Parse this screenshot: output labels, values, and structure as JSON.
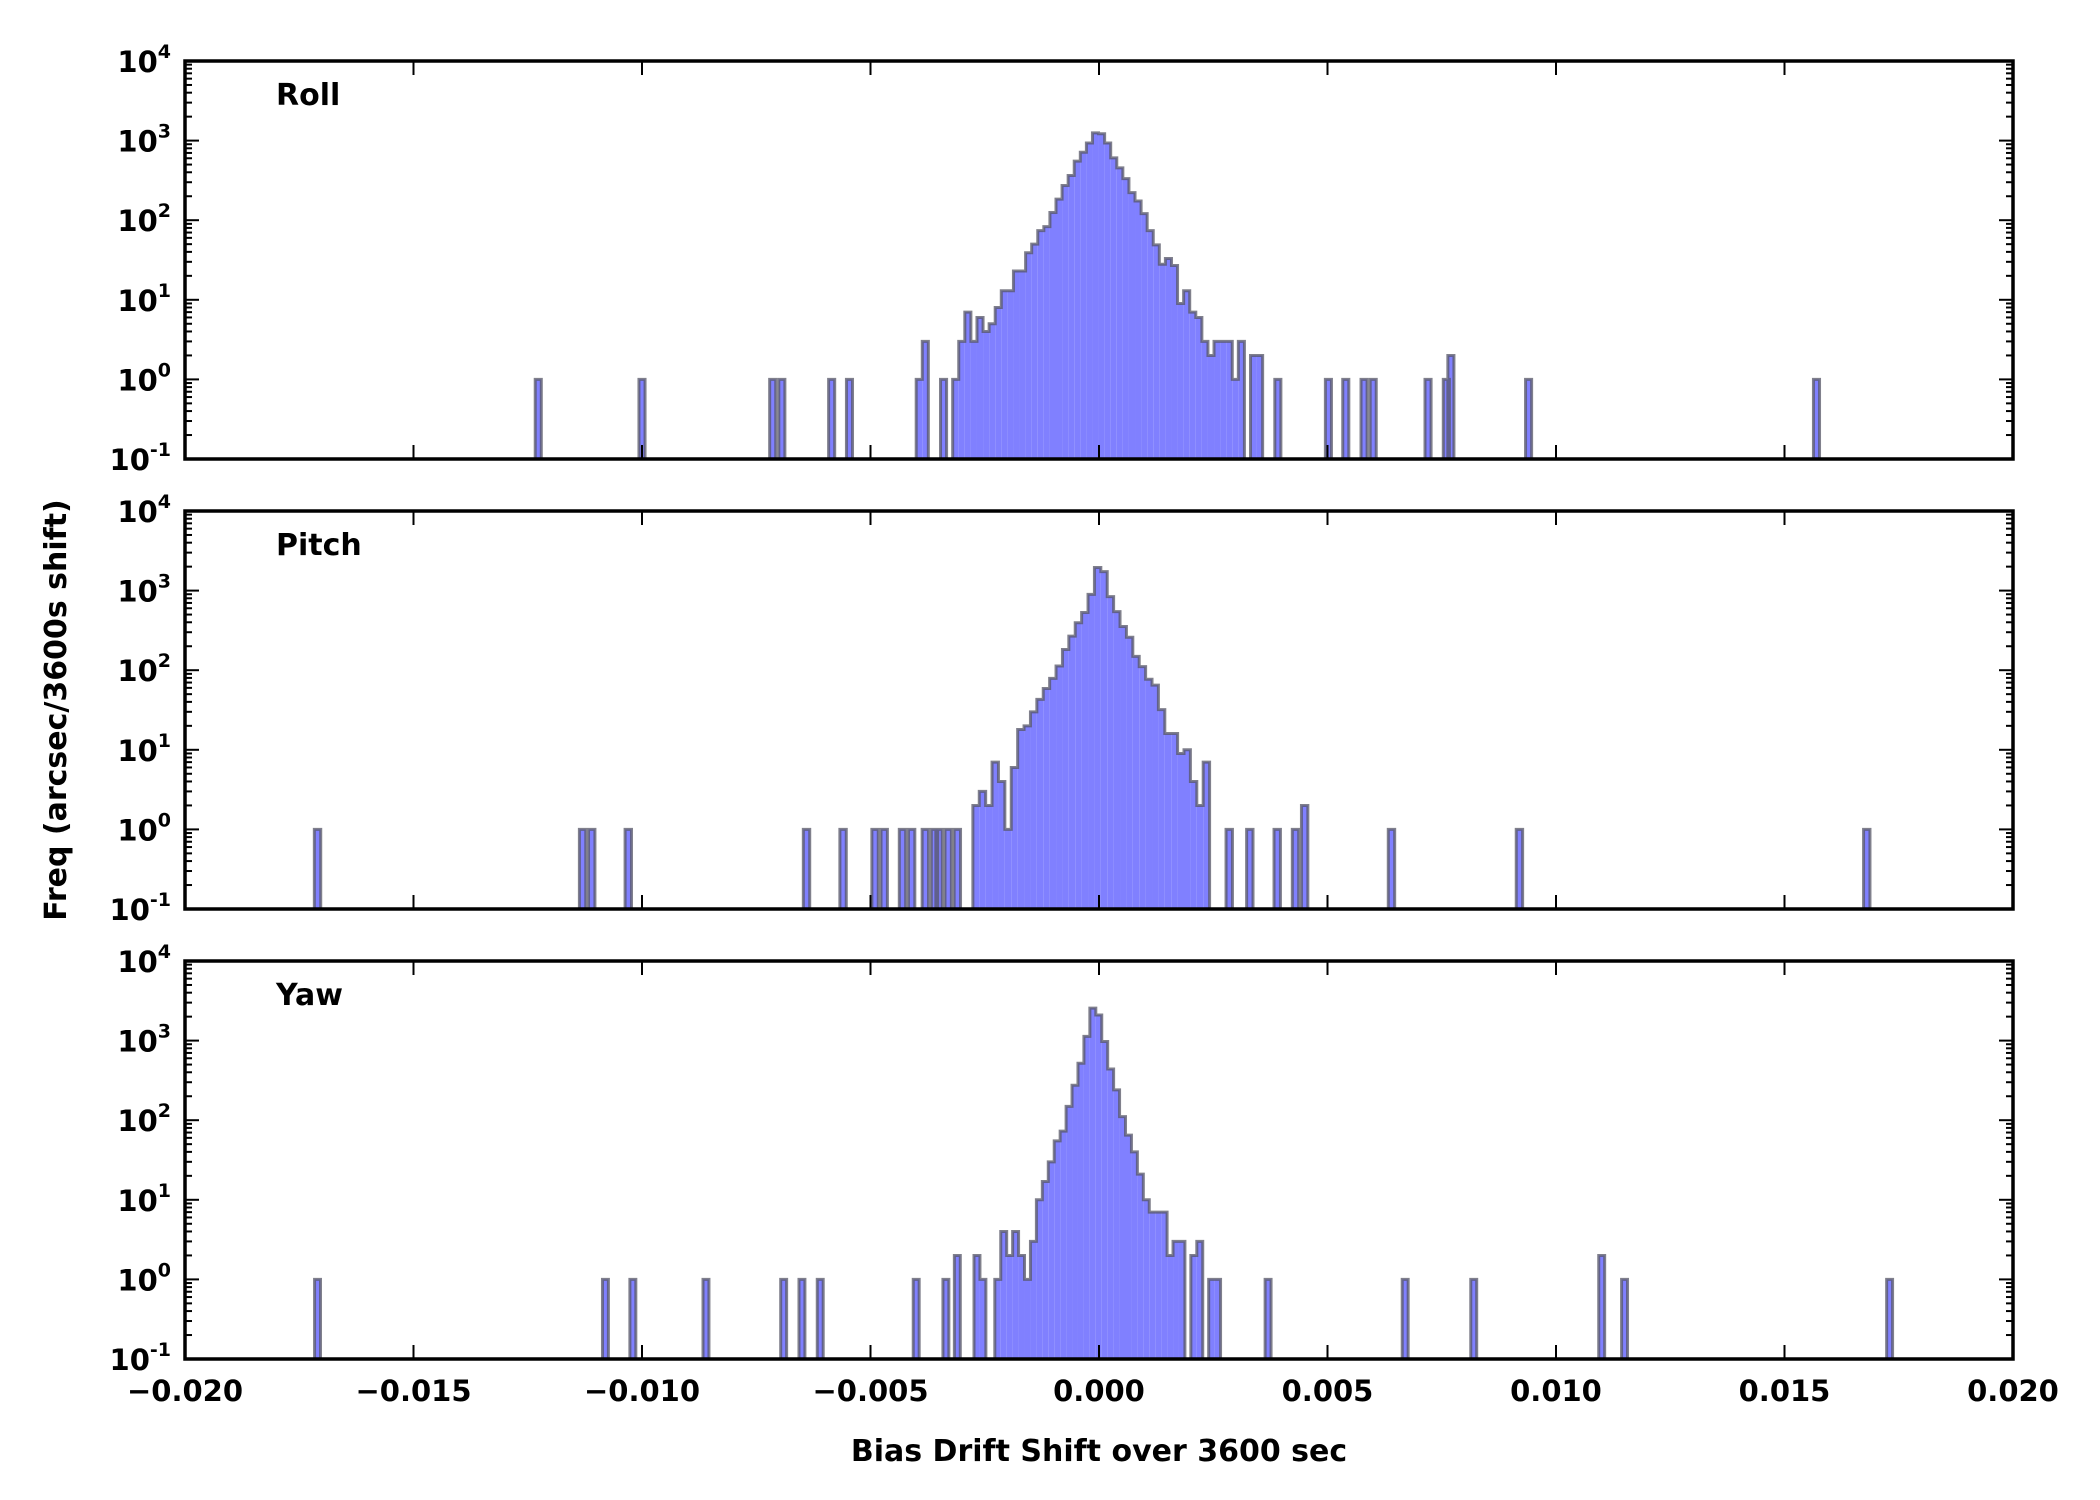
{
  "colors": {
    "fill": "#8080ff",
    "edge": "#555566",
    "axis": "#000000"
  },
  "chart_data": {
    "type": "bar",
    "subtype": "histogram-stepfilled",
    "xlabel": "Bias Drift Shift over 3600 sec",
    "ylabel": "Freq (arcsec/3600s shift)",
    "xlim": [
      -0.02,
      0.02
    ],
    "ylim": [
      0.1,
      10000
    ],
    "yscale": "log",
    "grid": false,
    "xticks": [
      -0.02,
      -0.015,
      -0.01,
      -0.005,
      0.0,
      0.005,
      0.01,
      0.015,
      0.02
    ],
    "xtick_labels": [
      "−0.020",
      "−0.015",
      "−0.010",
      "−0.005",
      "0.000",
      "0.005",
      "0.010",
      "0.015",
      "0.020"
    ],
    "yticks": [
      10000,
      1000,
      100,
      10,
      1,
      0.1
    ],
    "ytick_labels": [
      {
        "base": "10",
        "exp": "4"
      },
      {
        "base": "10",
        "exp": "3"
      },
      {
        "base": "10",
        "exp": "2"
      },
      {
        "base": "10",
        "exp": "1"
      },
      {
        "base": "10",
        "exp": "0"
      },
      {
        "base": "10",
        "exp": "-1"
      }
    ],
    "panels": [
      {
        "title": "Roll",
        "bin_width": 0.000133,
        "contiguous": {
          "start": -0.004,
          "counts": [
            1,
            3,
            0,
            0,
            1,
            0,
            1,
            3,
            7,
            3,
            6,
            4,
            5,
            8,
            13,
            13,
            23,
            23,
            39,
            50,
            74,
            83,
            125,
            184,
            273,
            365,
            552,
            714,
            934,
            1250,
            1220,
            934,
            607,
            455,
            333,
            222,
            174,
            121,
            74,
            49,
            28,
            33,
            27,
            9,
            13,
            7,
            6,
            3,
            2,
            3,
            3,
            3,
            1,
            3,
            0,
            2,
            2,
            0,
            0,
            1
          ]
        },
        "outliers": [
          [
            -0.01227,
            1
          ],
          [
            -0.01,
            1
          ],
          [
            -0.00714,
            1
          ],
          [
            -0.00694,
            1
          ],
          [
            -0.00585,
            1
          ],
          [
            -0.00546,
            1
          ],
          [
            0.00502,
            1
          ],
          [
            0.0054,
            1
          ],
          [
            0.0058,
            1
          ],
          [
            0.006,
            1
          ],
          [
            0.0072,
            1
          ],
          [
            0.0076,
            1
          ],
          [
            0.0077,
            2
          ],
          [
            0.0094,
            1
          ],
          [
            0.0157,
            1
          ]
        ]
      },
      {
        "title": "Pitch",
        "bin_width": 0.00014,
        "contiguous": {
          "start": -0.00276,
          "counts": [
            2,
            3,
            2,
            7,
            4,
            1,
            6,
            18,
            20,
            30,
            43,
            59,
            79,
            113,
            182,
            268,
            395,
            530,
            897,
            1950,
            1730,
            840,
            545,
            354,
            259,
            149,
            111,
            77,
            65,
            32,
            16,
            16,
            9,
            10,
            4,
            2,
            7
          ]
        },
        "outliers": [
          [
            -0.0171,
            1
          ],
          [
            -0.0113,
            1
          ],
          [
            -0.0111,
            1
          ],
          [
            -0.0103,
            1
          ],
          [
            -0.0064,
            1
          ],
          [
            -0.0056,
            1
          ],
          [
            -0.0049,
            1
          ],
          [
            -0.0047,
            1
          ],
          [
            -0.0043,
            1
          ],
          [
            -0.0041,
            1
          ],
          [
            -0.0038,
            1
          ],
          [
            -0.0036,
            1
          ],
          [
            -0.0035,
            1
          ],
          [
            -0.0033,
            1
          ],
          [
            -0.0031,
            1
          ],
          [
            0.00285,
            1
          ],
          [
            0.0033,
            1
          ],
          [
            0.0039,
            1
          ],
          [
            0.0043,
            1
          ],
          [
            0.0045,
            2
          ],
          [
            0.0064,
            1
          ],
          [
            0.0092,
            1
          ],
          [
            0.0168,
            1
          ]
        ]
      },
      {
        "title": "Yaw",
        "bin_width": 0.00013,
        "contiguous": {
          "start": -0.00228,
          "counts": [
            1,
            4,
            2,
            4,
            2,
            1,
            3,
            10,
            17,
            30,
            55,
            73,
            149,
            275,
            520,
            1130,
            2560,
            2100,
            975,
            440,
            240,
            111,
            65,
            40,
            21,
            10,
            7,
            7,
            7,
            2,
            3,
            3,
            0,
            2,
            3,
            0,
            1,
            1
          ]
        },
        "outliers": [
          [
            -0.0171,
            1
          ],
          [
            -0.0108,
            1
          ],
          [
            -0.0102,
            1
          ],
          [
            -0.0086,
            1
          ],
          [
            -0.0069,
            1
          ],
          [
            -0.0065,
            1
          ],
          [
            -0.0061,
            1
          ],
          [
            -0.004,
            1
          ],
          [
            -0.00335,
            1
          ],
          [
            -0.0031,
            2
          ],
          [
            -0.00267,
            2
          ],
          [
            -0.00254,
            1
          ],
          [
            0.0037,
            1
          ],
          [
            0.0067,
            1
          ],
          [
            0.0082,
            1
          ],
          [
            0.011,
            2
          ],
          [
            0.0115,
            1
          ],
          [
            0.0173,
            1
          ]
        ]
      }
    ]
  }
}
